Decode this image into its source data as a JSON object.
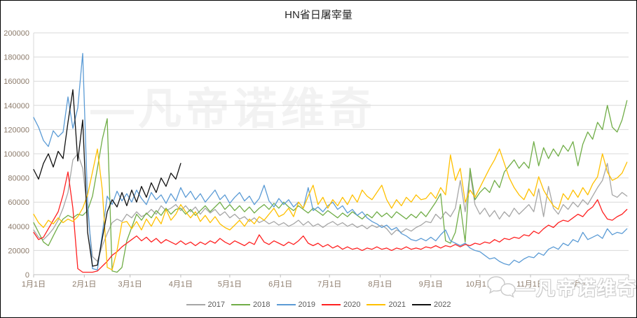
{
  "title": "HN省日屠宰量",
  "watermark": {
    "center_text": "—凡帝诺维奇",
    "corner_text": "—凡帝诺维奇",
    "corner_icon": "chat-bubbles-icon"
  },
  "chart_data": {
    "type": "line",
    "title": "HN省日屠宰量",
    "grid": true,
    "legend_position": "bottom",
    "x_axis": {
      "tick_labels": [
        "1月1日",
        "2月1日",
        "3月1日",
        "4月1日",
        "5月1日",
        "6月1日",
        "7月1日",
        "8月1日",
        "9月1日",
        "10月1日",
        "11月1日",
        "12月1日"
      ],
      "tick_days": [
        1,
        32,
        60,
        91,
        121,
        152,
        182,
        213,
        244,
        274,
        305,
        335
      ],
      "start_day": 1,
      "end_day": 365
    },
    "y_axis": {
      "min": 0,
      "max": 200000,
      "step": 20000,
      "tick_labels": [
        "0",
        "20000",
        "40000",
        "60000",
        "80000",
        "100000",
        "120000",
        "140000",
        "160000",
        "180000",
        "200000"
      ]
    },
    "axis_label_color": "#8c7b6b",
    "grid_color": "#d9d9d9",
    "axis_line_color": "#bfbfbf",
    "sample_step_days": 3,
    "series": [
      {
        "name": "2017",
        "color": "#a6a6a6",
        "start_day": 1,
        "values": [
          37000,
          31000,
          29000,
          33000,
          38000,
          45000,
          55000,
          68000,
          95000,
          100000,
          88000,
          52000,
          15000,
          11000,
          24000,
          34000,
          43000,
          46000,
          44000,
          50000,
          47000,
          52000,
          48000,
          50000,
          54000,
          50000,
          57000,
          53000,
          55000,
          58000,
          53000,
          57000,
          52000,
          56000,
          50000,
          55000,
          51000,
          54000,
          49000,
          52000,
          47000,
          50000,
          46000,
          48000,
          44000,
          47000,
          43000,
          45000,
          42000,
          44000,
          41000,
          43000,
          40000,
          42000,
          45000,
          41000,
          44000,
          40000,
          42000,
          39000,
          42000,
          44000,
          41000,
          43000,
          40000,
          42000,
          39000,
          41000,
          38000,
          41000,
          39000,
          41000,
          38000,
          33000,
          37000,
          35000,
          38000,
          36000,
          39000,
          41000,
          44000,
          43000,
          50000,
          46000,
          52000,
          48000,
          55000,
          78000,
          52000,
          84000,
          58000,
          50000,
          55000,
          48000,
          53000,
          46000,
          52000,
          48000,
          55000,
          50000,
          54000,
          58000,
          52000,
          71000,
          48000,
          73000,
          55000,
          50000,
          58000,
          54000,
          60000,
          56000,
          62000,
          58000,
          65000,
          72000,
          78000,
          92000,
          66000,
          64000,
          68000,
          65000
        ]
      },
      {
        "name": "2018",
        "color": "#70ad47",
        "start_day": 1,
        "values": [
          43000,
          35000,
          27000,
          24000,
          32000,
          40000,
          46000,
          49000,
          47000,
          50000,
          49000,
          53000,
          65000,
          88000,
          112000,
          129000,
          3000,
          2000,
          6000,
          28000,
          39000,
          50000,
          45000,
          51000,
          47000,
          53000,
          49000,
          55000,
          50000,
          54000,
          55000,
          50000,
          54000,
          49000,
          53000,
          57000,
          52000,
          56000,
          60000,
          54000,
          58000,
          53000,
          57000,
          52000,
          56000,
          51000,
          55000,
          58000,
          54000,
          59000,
          55000,
          60000,
          56000,
          53000,
          57000,
          54000,
          51000,
          55000,
          52000,
          49000,
          53000,
          50000,
          47000,
          51000,
          48000,
          52000,
          49000,
          46000,
          50000,
          47000,
          52000,
          48000,
          51000,
          47000,
          52000,
          49000,
          46000,
          50000,
          47000,
          52000,
          48000,
          54000,
          60000,
          67000,
          28000,
          26000,
          35000,
          58000,
          27000,
          88000,
          62000,
          68000,
          72000,
          68000,
          78000,
          72000,
          85000,
          90000,
          95000,
          88000,
          93000,
          88000,
          110000,
          90000,
          105000,
          96000,
          104000,
          98000,
          107000,
          102000,
          110000,
          90000,
          108000,
          118000,
          112000,
          126000,
          120000,
          140000,
          122000,
          118000,
          128000,
          144000
        ]
      },
      {
        "name": "2019",
        "color": "#5b9bd5",
        "start_day": 1,
        "values": [
          130000,
          122000,
          111000,
          106000,
          119000,
          114000,
          118000,
          147000,
          121000,
          138000,
          183000,
          60000,
          5000,
          4000,
          34000,
          65000,
          58000,
          69000,
          61000,
          67000,
          60000,
          70000,
          63000,
          58000,
          68000,
          62000,
          66000,
          59000,
          67000,
          61000,
          72000,
          64000,
          69000,
          62000,
          67000,
          60000,
          65000,
          70000,
          62000,
          66000,
          59000,
          64000,
          68000,
          61000,
          65000,
          58000,
          63000,
          74000,
          61000,
          56000,
          63000,
          58000,
          62000,
          56000,
          60000,
          55000,
          72000,
          53000,
          56000,
          52000,
          57000,
          60000,
          54000,
          57000,
          51000,
          54000,
          49000,
          52000,
          47000,
          44000,
          42000,
          39000,
          41000,
          37000,
          39000,
          34000,
          32000,
          29000,
          28000,
          30000,
          28000,
          31000,
          28000,
          33000,
          37000,
          28000,
          26000,
          24000,
          26000,
          22000,
          20000,
          19000,
          16000,
          13000,
          14000,
          11000,
          9000,
          8000,
          12000,
          10000,
          13000,
          15000,
          14000,
          18000,
          16000,
          21000,
          23000,
          21000,
          26000,
          24000,
          29000,
          27000,
          35000,
          29000,
          31000,
          33000,
          30000,
          38000,
          33000,
          35000,
          34000,
          38000
        ]
      },
      {
        "name": "2020",
        "color": "#ff2121",
        "start_day": 1,
        "values": [
          35000,
          29000,
          31000,
          38000,
          45000,
          52000,
          66000,
          85000,
          55000,
          5000,
          2000,
          2000,
          2000,
          3000,
          7000,
          11000,
          16000,
          19000,
          23000,
          26000,
          29000,
          32000,
          28000,
          31000,
          27000,
          30000,
          26000,
          29000,
          27000,
          25000,
          28000,
          25000,
          27000,
          24000,
          27000,
          25000,
          28000,
          26000,
          30000,
          27000,
          25000,
          28000,
          26000,
          24000,
          27000,
          25000,
          33000,
          27000,
          25000,
          28000,
          26000,
          24000,
          27000,
          25000,
          28000,
          32000,
          26000,
          24000,
          26000,
          23000,
          25000,
          22000,
          24000,
          21000,
          23000,
          21000,
          22000,
          20000,
          22000,
          21000,
          23000,
          21000,
          22000,
          20000,
          22000,
          21000,
          23000,
          21000,
          22000,
          21000,
          23000,
          22000,
          24000,
          22000,
          24000,
          23000,
          25000,
          23000,
          25000,
          24000,
          26000,
          25000,
          27000,
          26000,
          29000,
          27000,
          30000,
          29000,
          31000,
          30000,
          33000,
          32000,
          36000,
          34000,
          38000,
          41000,
          39000,
          43000,
          45000,
          44000,
          47000,
          50000,
          48000,
          53000,
          56000,
          62000,
          52000,
          46000,
          45000,
          48000,
          50000,
          54000
        ]
      },
      {
        "name": "2021",
        "color": "#ffc000",
        "start_day": 1,
        "values": [
          50000,
          43000,
          39000,
          45000,
          42000,
          47000,
          43000,
          46000,
          44000,
          48000,
          55000,
          66000,
          85000,
          104000,
          70000,
          6000,
          4000,
          20000,
          43000,
          44000,
          38000,
          44000,
          37000,
          46000,
          40000,
          48000,
          42000,
          54000,
          45000,
          50000,
          58000,
          52000,
          47000,
          52000,
          44000,
          49000,
          43000,
          48000,
          42000,
          39000,
          37000,
          41000,
          45000,
          40000,
          46000,
          42000,
          48000,
          45000,
          50000,
          55000,
          48000,
          50000,
          55000,
          48000,
          60000,
          55000,
          65000,
          74000,
          58000,
          64000,
          55000,
          62000,
          57000,
          64000,
          58000,
          66000,
          60000,
          70000,
          65000,
          62000,
          68000,
          74000,
          62000,
          55000,
          62000,
          57000,
          64000,
          60000,
          66000,
          62000,
          63000,
          68000,
          63000,
          72000,
          66000,
          99000,
          78000,
          88000,
          60000,
          70000,
          64000,
          72000,
          80000,
          88000,
          95000,
          104000,
          92000,
          80000,
          72000,
          66000,
          62000,
          71000,
          65000,
          81000,
          70000,
          63000,
          57000,
          54000,
          67000,
          62000,
          70000,
          64000,
          72000,
          66000,
          75000,
          81000,
          100000,
          85000,
          78000,
          80000,
          84000,
          93000
        ]
      },
      {
        "name": "2022",
        "color": "#111111",
        "start_day": 1,
        "values": [
          87000,
          79000,
          92000,
          100000,
          89000,
          102000,
          96000,
          126000,
          153000,
          94000,
          128000,
          35000,
          7000,
          8000,
          30000,
          52000,
          62000,
          56000,
          68000,
          57000,
          70000,
          60000,
          73000,
          64000,
          76000,
          68000,
          80000,
          73000,
          84000,
          79000,
          92000
        ]
      }
    ]
  }
}
